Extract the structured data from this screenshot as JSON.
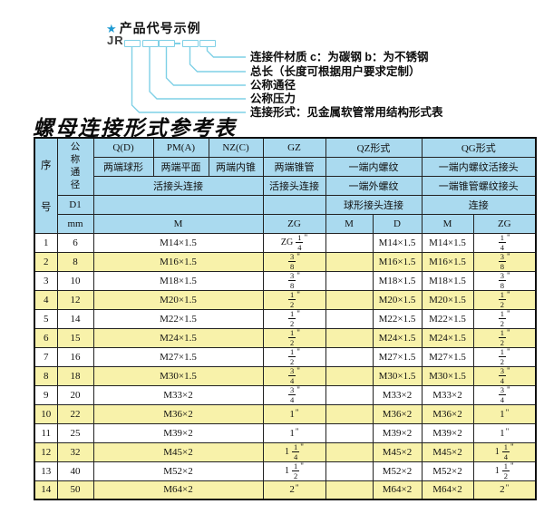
{
  "diagram": {
    "star": "★",
    "title": "产品代号示例",
    "code_prefix": "JR",
    "labels": [
      "连接件材质  c：为碳钢  b：为不锈钢",
      "总长（长度可根据用户要求定制）",
      "公称通径",
      "公称压力",
      "连接形式：见金属软管常用结构形式表"
    ]
  },
  "table": {
    "title": "螺母连接形式参考表",
    "header": {
      "seq": "序号",
      "dn": "公称通径",
      "d1": "D1",
      "mm": "mm",
      "col_codes": [
        "Q(D)",
        "PM(A)",
        "NZ(C)",
        "GZ",
        "QZ形式",
        "QG形式"
      ],
      "col_descs": [
        "两端球形",
        "两端平面",
        "两端内锥",
        "两端锥管",
        "一端内螺纹",
        "一端内螺纹活接头"
      ],
      "conn_row": [
        "活接头连接",
        "活接头连接",
        "一端外螺纹",
        "一端锥管螺纹接头"
      ],
      "conn_row2": [
        "球形接头连接",
        "连接"
      ],
      "unit_row": [
        "M",
        "ZG",
        "M",
        "D",
        "M",
        "ZG"
      ]
    },
    "rows": [
      {
        "seq": "1",
        "mm": "6",
        "m": "M14×1.5",
        "zg": "ZG 1/4\"",
        "qz_m": "",
        "qz_d": "M14×1.5",
        "qg_m": "M14×1.5",
        "qg_zg": "1/4\""
      },
      {
        "seq": "2",
        "mm": "8",
        "m": "M16×1.5",
        "zg": "3/8\"",
        "qz_m": "",
        "qz_d": "M16×1.5",
        "qg_m": "M16×1.5",
        "qg_zg": "3/8\""
      },
      {
        "seq": "3",
        "mm": "10",
        "m": "M18×1.5",
        "zg": "3/8\"",
        "qz_m": "",
        "qz_d": "M18×1.5",
        "qg_m": "M18×1.5",
        "qg_zg": "3/8\""
      },
      {
        "seq": "4",
        "mm": "12",
        "m": "M20×1.5",
        "zg": "1/2\"",
        "qz_m": "",
        "qz_d": "M20×1.5",
        "qg_m": "M20×1.5",
        "qg_zg": "1/2\""
      },
      {
        "seq": "5",
        "mm": "14",
        "m": "M22×1.5",
        "zg": "1/2\"",
        "qz_m": "",
        "qz_d": "M22×1.5",
        "qg_m": "M22×1.5",
        "qg_zg": "1/2\""
      },
      {
        "seq": "6",
        "mm": "15",
        "m": "M24×1.5",
        "zg": "1/2\"",
        "qz_m": "",
        "qz_d": "M24×1.5",
        "qg_m": "M24×1.5",
        "qg_zg": "1/2\""
      },
      {
        "seq": "7",
        "mm": "16",
        "m": "M27×1.5",
        "zg": "1/2\"",
        "qz_m": "",
        "qz_d": "M27×1.5",
        "qg_m": "M27×1.5",
        "qg_zg": "1/2\""
      },
      {
        "seq": "8",
        "mm": "18",
        "m": "M30×1.5",
        "zg": "3/4\"",
        "qz_m": "",
        "qz_d": "M30×1.5",
        "qg_m": "M30×1.5",
        "qg_zg": "3/4\""
      },
      {
        "seq": "9",
        "mm": "20",
        "m": "M33×2",
        "zg": "3/4\"",
        "qz_m": "",
        "qz_d": "M33×2",
        "qg_m": "M33×2",
        "qg_zg": "3/4\""
      },
      {
        "seq": "10",
        "mm": "22",
        "m": "M36×2",
        "zg": "1\"",
        "qz_m": "",
        "qz_d": "M36×2",
        "qg_m": "M36×2",
        "qg_zg": "1\""
      },
      {
        "seq": "11",
        "mm": "25",
        "m": "M39×2",
        "zg": "1\"",
        "qz_m": "",
        "qz_d": "M39×2",
        "qg_m": "M39×2",
        "qg_zg": "1\""
      },
      {
        "seq": "12",
        "mm": "32",
        "m": "M45×2",
        "zg": "1 1/4\"",
        "qz_m": "",
        "qz_d": "M45×2",
        "qg_m": "M45×2",
        "qg_zg": "1 1/4\""
      },
      {
        "seq": "13",
        "mm": "40",
        "m": "M52×2",
        "zg": "1 1/2\"",
        "qz_m": "",
        "qz_d": "M52×2",
        "qg_m": "M52×2",
        "qg_zg": "1 1/2\""
      },
      {
        "seq": "14",
        "mm": "50",
        "m": "M64×2",
        "zg": "2\"",
        "qz_m": "",
        "qz_d": "M64×2",
        "qg_m": "M64×2",
        "qg_zg": "2\""
      }
    ]
  },
  "colors": {
    "header-blue": "#aadaef",
    "row-yellow": "#f8f2aa",
    "line-cyan": "#7fd0e6",
    "star-blue": "#1e9ad2"
  }
}
